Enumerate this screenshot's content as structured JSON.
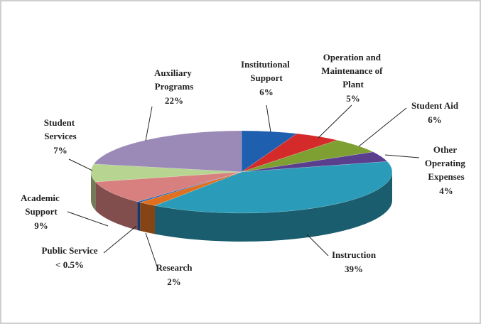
{
  "chart_data": {
    "type": "pie3d",
    "categories": [
      "Institutional Support",
      "Operation and Maintenance of Plant",
      "Student Aid",
      "Other Operating Expenses",
      "Instruction",
      "Research",
      "Public Service",
      "Academic Support",
      "Student Services",
      "Auxiliary Programs"
    ],
    "values": [
      6,
      5,
      6,
      4,
      39,
      2,
      0.4,
      9,
      7,
      22
    ],
    "value_labels": [
      "6%",
      "5%",
      "6%",
      "4%",
      "39%",
      "2%",
      "< 0.5%",
      "9%",
      "7%",
      "22%"
    ],
    "colors": [
      "#1f5fb0",
      "#d42a2a",
      "#7ea032",
      "#5b3f8f",
      "#2a9bb8",
      "#e07020",
      "#1f5fb0",
      "#d88080",
      "#b7d490",
      "#9b8ab8"
    ]
  }
}
